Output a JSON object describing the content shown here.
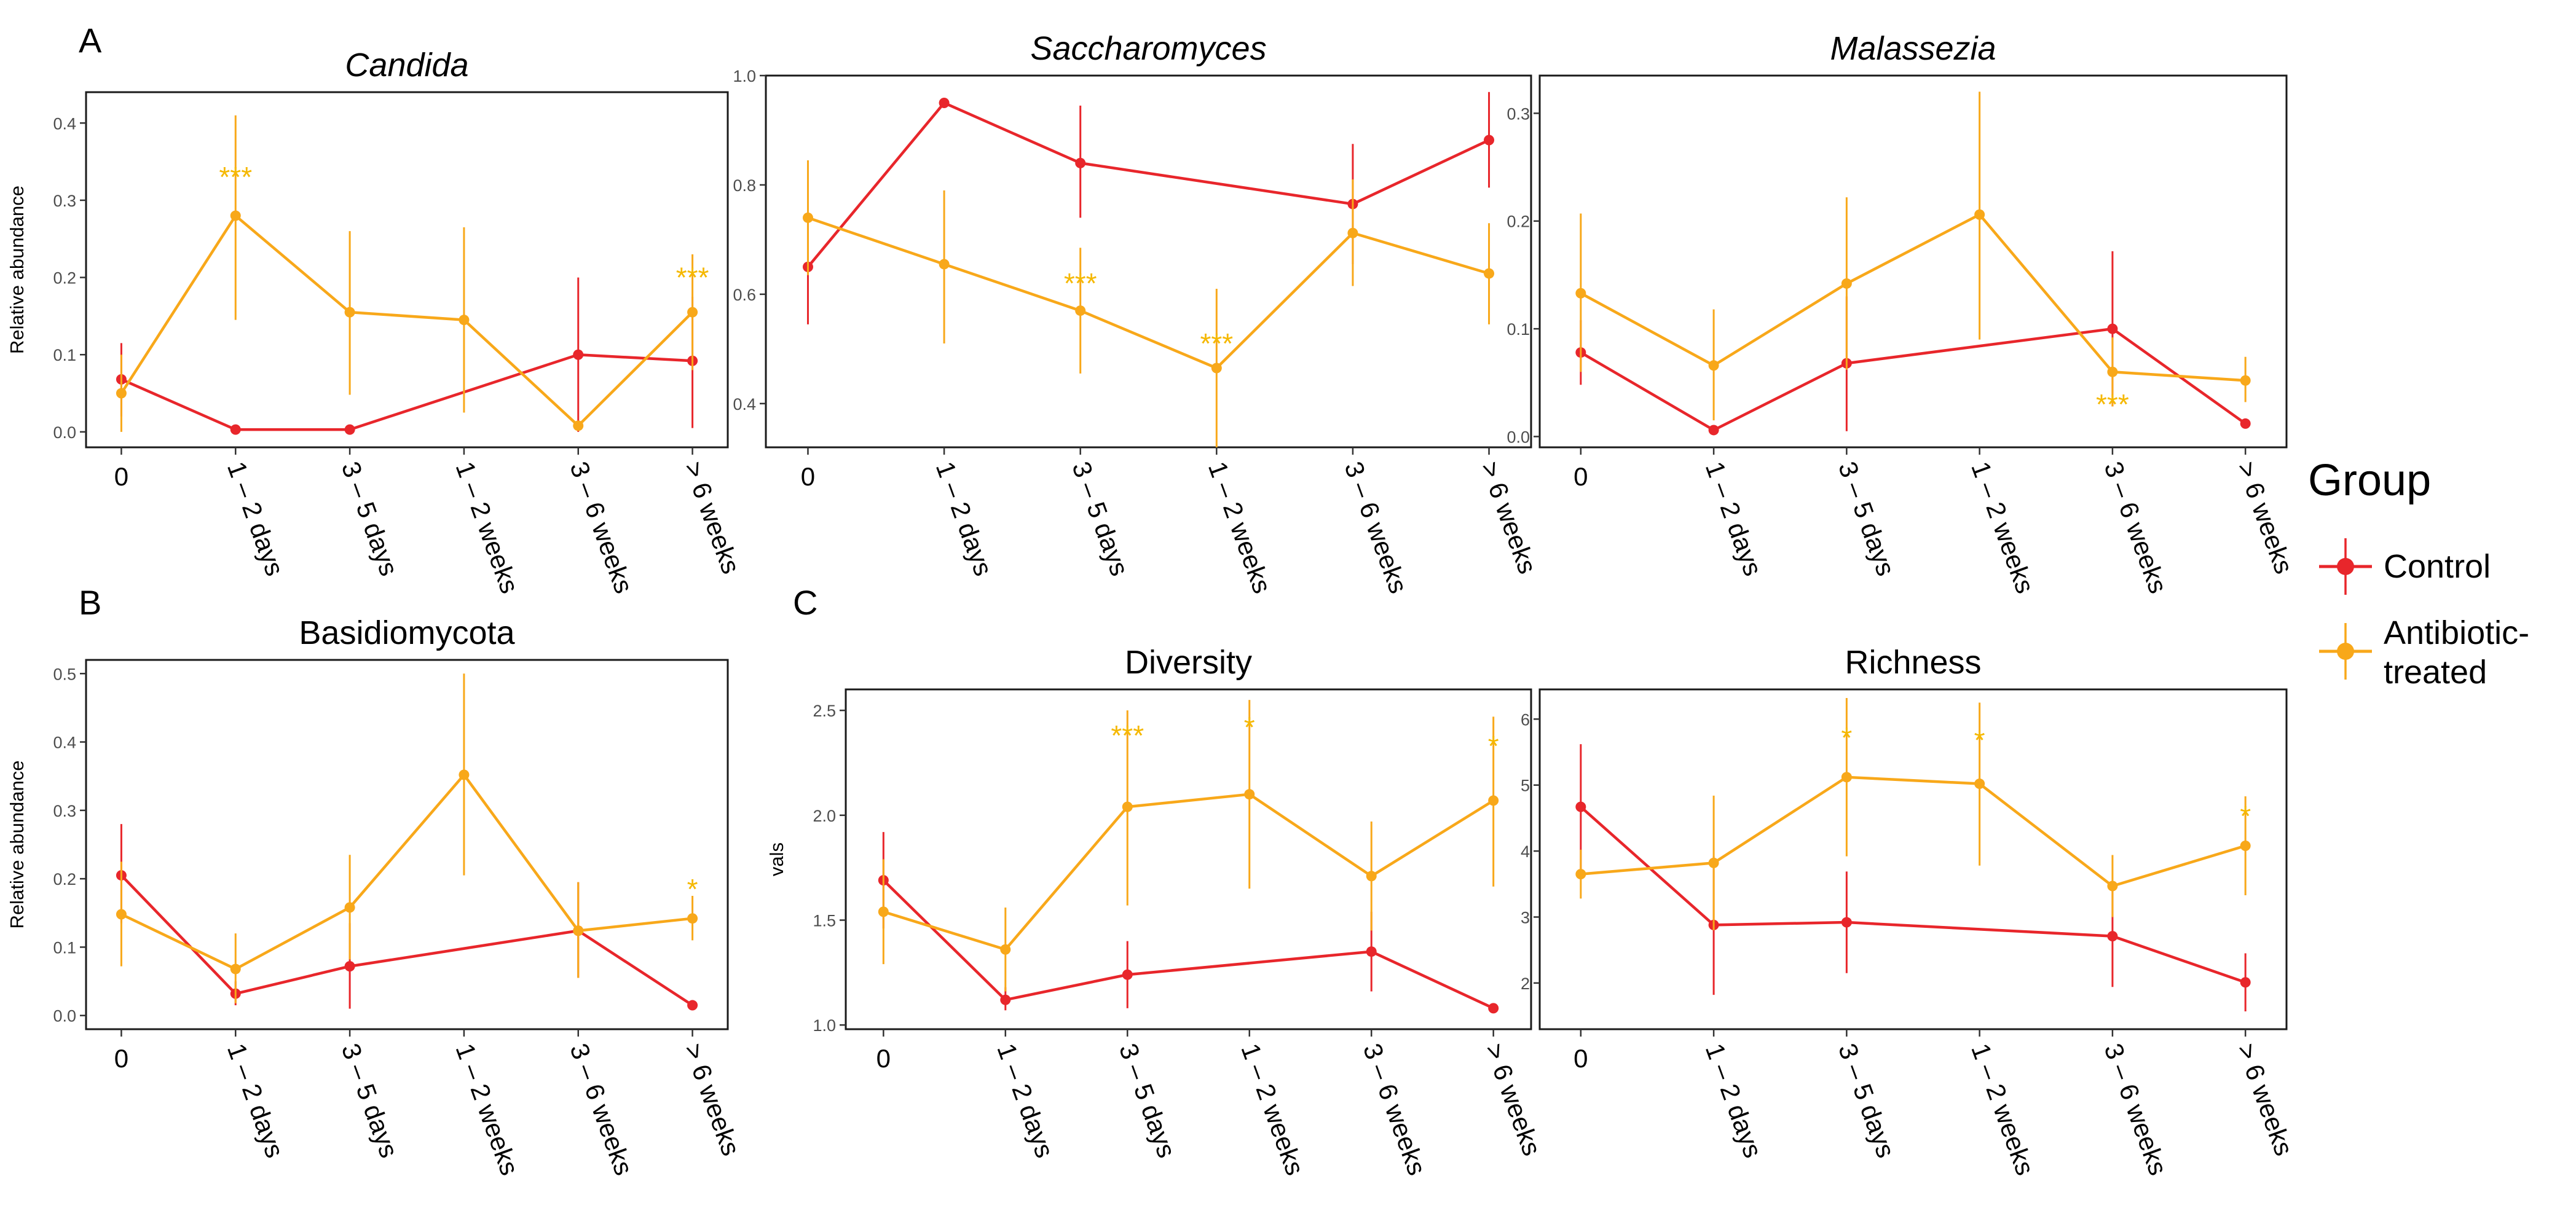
{
  "figure": {
    "legend": {
      "title": "Group",
      "entries": [
        {
          "label_lines": [
            "Control"
          ],
          "color": "#e8262b"
        },
        {
          "label_lines": [
            "Antibiotic-",
            "treated"
          ],
          "color": "#f8a81a"
        }
      ]
    }
  },
  "chart_data": [
    {
      "id": "candida",
      "panel_letter": "A",
      "type": "line",
      "title": "Candida",
      "title_italic": true,
      "xlabel": "",
      "ylabel": "Relative abundance",
      "categories": [
        "0",
        "1 – 2 days",
        "3 – 5 days",
        "1 – 2 weeks",
        "3 – 6 weeks",
        "> 6 weeks"
      ],
      "ylim": [
        -0.02,
        0.44
      ],
      "yticks": [
        0.0,
        0.1,
        0.2,
        0.3,
        0.4
      ],
      "ytick_labels": [
        "0.0",
        "0.1",
        "0.2",
        "0.3",
        "0.4"
      ],
      "series": [
        {
          "name": "Control",
          "color": "#e8262b",
          "values": [
            0.068,
            0.003,
            0.003,
            null,
            0.1,
            0.092
          ],
          "err_low": [
            0.02,
            null,
            null,
            null,
            0.0,
            0.005
          ],
          "err_high": [
            0.115,
            null,
            null,
            null,
            0.2,
            0.175
          ]
        },
        {
          "name": "Antibiotic-treated",
          "color": "#f8a81a",
          "values": [
            0.05,
            0.28,
            0.155,
            0.145,
            0.008,
            0.155
          ],
          "err_low": [
            0.0,
            0.145,
            0.048,
            0.025,
            null,
            0.08
          ],
          "err_high": [
            0.1,
            0.41,
            0.26,
            0.265,
            null,
            0.23
          ]
        }
      ],
      "annotations": [
        {
          "category": "1 – 2 days",
          "y": 0.33,
          "text": "***"
        },
        {
          "category": "> 6 weeks",
          "y": 0.2,
          "text": "***"
        }
      ]
    },
    {
      "id": "saccharomyces",
      "panel_letter": "",
      "type": "line",
      "title": "Saccharomyces",
      "title_italic": true,
      "xlabel": "",
      "ylabel": "",
      "categories": [
        "0",
        "1 – 2 days",
        "3 – 5 days",
        "1 – 2 weeks",
        "3 – 6 weeks",
        "> 6 weeks"
      ],
      "ylim": [
        0.32,
        1.0
      ],
      "yticks": [
        0.4,
        0.6,
        0.8,
        1.0
      ],
      "ytick_labels": [
        "0.4",
        "0.6",
        "0.8",
        "1.0"
      ],
      "series": [
        {
          "name": "Control",
          "color": "#e8262b",
          "values": [
            0.65,
            0.95,
            0.84,
            null,
            0.765,
            0.882
          ],
          "err_low": [
            0.545,
            null,
            0.74,
            null,
            0.655,
            0.795
          ],
          "err_high": [
            0.745,
            null,
            0.945,
            null,
            0.875,
            0.97
          ]
        },
        {
          "name": "Antibiotic-treated",
          "color": "#f8a81a",
          "values": [
            0.74,
            0.655,
            0.57,
            0.465,
            0.712,
            0.638
          ],
          "err_low": [
            0.635,
            0.51,
            0.455,
            0.32,
            0.615,
            0.545
          ],
          "err_high": [
            0.845,
            0.79,
            0.685,
            0.61,
            0.81,
            0.73
          ]
        }
      ],
      "annotations": [
        {
          "category": "3 – 5 days",
          "y": 0.62,
          "text": "***"
        },
        {
          "category": "1 – 2 weeks",
          "y": 0.51,
          "text": "***"
        }
      ]
    },
    {
      "id": "malassezia",
      "panel_letter": "",
      "type": "line",
      "title": "Malassezia",
      "title_italic": true,
      "xlabel": "",
      "ylabel": "",
      "categories": [
        "0",
        "1 – 2 days",
        "3 – 5 days",
        "1 – 2 weeks",
        "3 – 6 weeks",
        "> 6 weeks"
      ],
      "ylim": [
        -0.01,
        0.335
      ],
      "yticks": [
        0.0,
        0.1,
        0.2,
        0.3
      ],
      "ytick_labels": [
        "0.0",
        "0.1",
        "0.2",
        "0.3"
      ],
      "series": [
        {
          "name": "Control",
          "color": "#e8262b",
          "values": [
            0.078,
            0.006,
            0.068,
            null,
            0.1,
            0.012
          ],
          "err_low": [
            0.048,
            null,
            0.005,
            null,
            0.028,
            null
          ],
          "err_high": [
            0.108,
            null,
            0.13,
            null,
            0.172,
            null
          ]
        },
        {
          "name": "Antibiotic-treated",
          "color": "#f8a81a",
          "values": [
            0.133,
            0.066,
            0.142,
            0.206,
            0.06,
            0.052
          ],
          "err_low": [
            0.06,
            0.015,
            0.062,
            0.09,
            0.028,
            0.032
          ],
          "err_high": [
            0.207,
            0.118,
            0.222,
            0.32,
            0.092,
            0.074
          ]
        }
      ],
      "annotations": [
        {
          "category": "3 – 6 weeks",
          "y": 0.03,
          "text": "***"
        }
      ]
    },
    {
      "id": "basidiomycota",
      "panel_letter": "B",
      "type": "line",
      "title": "Basidiomycota",
      "title_italic": false,
      "xlabel": "",
      "ylabel": "Relative abundance",
      "categories": [
        "0",
        "1 – 2 days",
        "3 – 5 days",
        "1 – 2 weeks",
        "3 – 6 weeks",
        "> 6 weeks"
      ],
      "ylim": [
        -0.02,
        0.52
      ],
      "yticks": [
        0.0,
        0.1,
        0.2,
        0.3,
        0.4,
        0.5
      ],
      "ytick_labels": [
        "0.0",
        "0.1",
        "0.2",
        "0.3",
        "0.4",
        "0.5"
      ],
      "series": [
        {
          "name": "Control",
          "color": "#e8262b",
          "values": [
            0.205,
            0.032,
            0.072,
            null,
            0.124,
            0.015
          ],
          "err_low": [
            0.135,
            0.015,
            0.01,
            null,
            0.055,
            null
          ],
          "err_high": [
            0.28,
            0.05,
            0.135,
            null,
            0.195,
            null
          ]
        },
        {
          "name": "Antibiotic-treated",
          "color": "#f8a81a",
          "values": [
            0.148,
            0.068,
            0.158,
            0.352,
            0.124,
            0.142
          ],
          "err_low": [
            0.072,
            0.018,
            0.082,
            0.205,
            0.055,
            0.11
          ],
          "err_high": [
            0.225,
            0.12,
            0.235,
            0.5,
            0.195,
            0.175
          ]
        }
      ],
      "annotations": [
        {
          "category": "> 6 weeks",
          "y": 0.185,
          "text": "*"
        }
      ]
    },
    {
      "id": "diversity",
      "panel_letter": "C",
      "type": "line",
      "title": "Diversity",
      "title_italic": false,
      "xlabel": "",
      "ylabel": "vals",
      "categories": [
        "0",
        "1 – 2 days",
        "3 – 5 days",
        "1 – 2 weeks",
        "3 – 6 weeks",
        "> 6 weeks"
      ],
      "ylim": [
        0.98,
        2.6
      ],
      "yticks": [
        1.0,
        1.5,
        2.0,
        2.5
      ],
      "ytick_labels": [
        "1.0",
        "1.5",
        "2.0",
        "2.5"
      ],
      "series": [
        {
          "name": "Control",
          "color": "#e8262b",
          "values": [
            1.69,
            1.12,
            1.24,
            null,
            1.35,
            1.08
          ],
          "err_low": [
            1.46,
            1.07,
            1.08,
            null,
            1.16,
            null
          ],
          "err_high": [
            1.92,
            1.18,
            1.4,
            null,
            1.54,
            null
          ]
        },
        {
          "name": "Antibiotic-treated",
          "color": "#f8a81a",
          "values": [
            1.54,
            1.36,
            2.04,
            2.1,
            1.71,
            2.07
          ],
          "err_low": [
            1.29,
            1.16,
            1.57,
            1.65,
            1.45,
            1.66
          ],
          "err_high": [
            1.79,
            1.56,
            2.5,
            2.55,
            1.97,
            2.47
          ]
        }
      ],
      "annotations": [
        {
          "category": "3 – 5 days",
          "y": 2.38,
          "text": "***"
        },
        {
          "category": "1 – 2 weeks",
          "y": 2.42,
          "text": "*"
        },
        {
          "category": "> 6 weeks",
          "y": 2.33,
          "text": "*"
        }
      ]
    },
    {
      "id": "richness",
      "panel_letter": "",
      "type": "line",
      "title": "Richness",
      "title_italic": false,
      "xlabel": "",
      "ylabel": "",
      "categories": [
        "0",
        "1 – 2 days",
        "3 – 5 days",
        "1 – 2 weeks",
        "3 – 6 weeks",
        "> 6 weeks"
      ],
      "ylim": [
        1.3,
        6.45
      ],
      "yticks": [
        2,
        3,
        4,
        5,
        6
      ],
      "ytick_labels": [
        "2",
        "3",
        "4",
        "5",
        "6"
      ],
      "series": [
        {
          "name": "Control",
          "color": "#e8262b",
          "values": [
            4.67,
            2.88,
            2.92,
            null,
            2.71,
            2.01
          ],
          "err_low": [
            3.72,
            1.82,
            2.15,
            null,
            1.94,
            1.57
          ],
          "err_high": [
            5.62,
            3.92,
            3.69,
            null,
            3.48,
            2.45
          ]
        },
        {
          "name": "Antibiotic-treated",
          "color": "#f8a81a",
          "values": [
            3.65,
            3.82,
            5.12,
            5.02,
            3.47,
            4.08
          ],
          "err_low": [
            3.28,
            2.8,
            3.92,
            3.78,
            3.0,
            3.33
          ],
          "err_high": [
            4.02,
            4.84,
            6.32,
            6.25,
            3.94,
            4.83
          ]
        }
      ],
      "annotations": [
        {
          "category": "3 – 5 days",
          "y": 5.72,
          "text": "*"
        },
        {
          "category": "1 – 2 weeks",
          "y": 5.68,
          "text": "*"
        },
        {
          "category": "> 6 weeks",
          "y": 4.53,
          "text": "*"
        }
      ]
    }
  ]
}
